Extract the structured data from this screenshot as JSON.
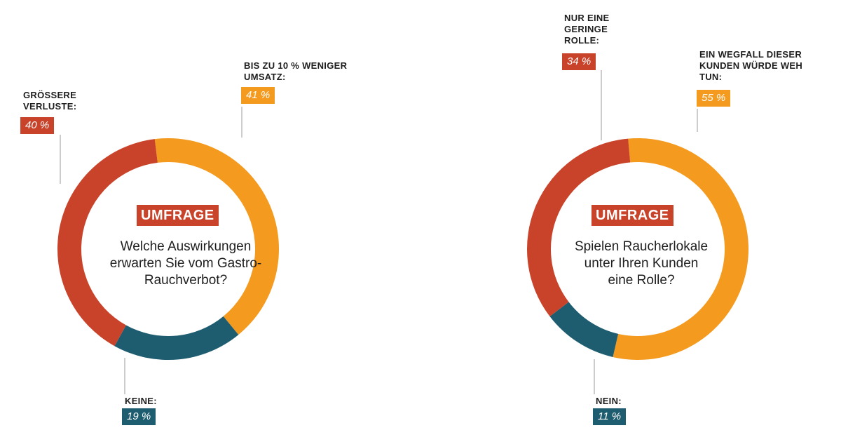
{
  "colors": {
    "red": "#c9432a",
    "orange": "#f39a1f",
    "teal": "#1e5c70",
    "leader": "#9a9a9a"
  },
  "chart_data": [
    {
      "type": "pie",
      "variant": "donut",
      "tag": "UMFRAGE",
      "question": "Welche Auswirkungen\nerwarten Sie vom Gastro-\nRauchverbot?",
      "slices": [
        {
          "label": "BIS ZU 10 % WENIGER UMSATZ:",
          "value": 41,
          "value_label": "41 %",
          "color": "#f39a1f"
        },
        {
          "label": "KEINE:",
          "value": 19,
          "value_label": "19 %",
          "color": "#1e5c70"
        },
        {
          "label": "GRÖSSERE VERLUSTE:",
          "value": 40,
          "value_label": "40 %",
          "color": "#c9432a"
        }
      ]
    },
    {
      "type": "pie",
      "variant": "donut",
      "tag": "UMFRAGE",
      "question": "Spielen Raucherlokale\nunter Ihren Kunden\neine Rolle?",
      "slices": [
        {
          "label": "EIN WEGFALL DIESER KUNDEN WÜRDE WEH TUN:",
          "value": 55,
          "value_label": "55 %",
          "color": "#f39a1f"
        },
        {
          "label": "NEIN:",
          "value": 11,
          "value_label": "11 %",
          "color": "#1e5c70"
        },
        {
          "label": "NUR EINE GERINGE ROLLE:",
          "value": 34,
          "value_label": "34 %",
          "color": "#c9432a"
        }
      ]
    }
  ]
}
